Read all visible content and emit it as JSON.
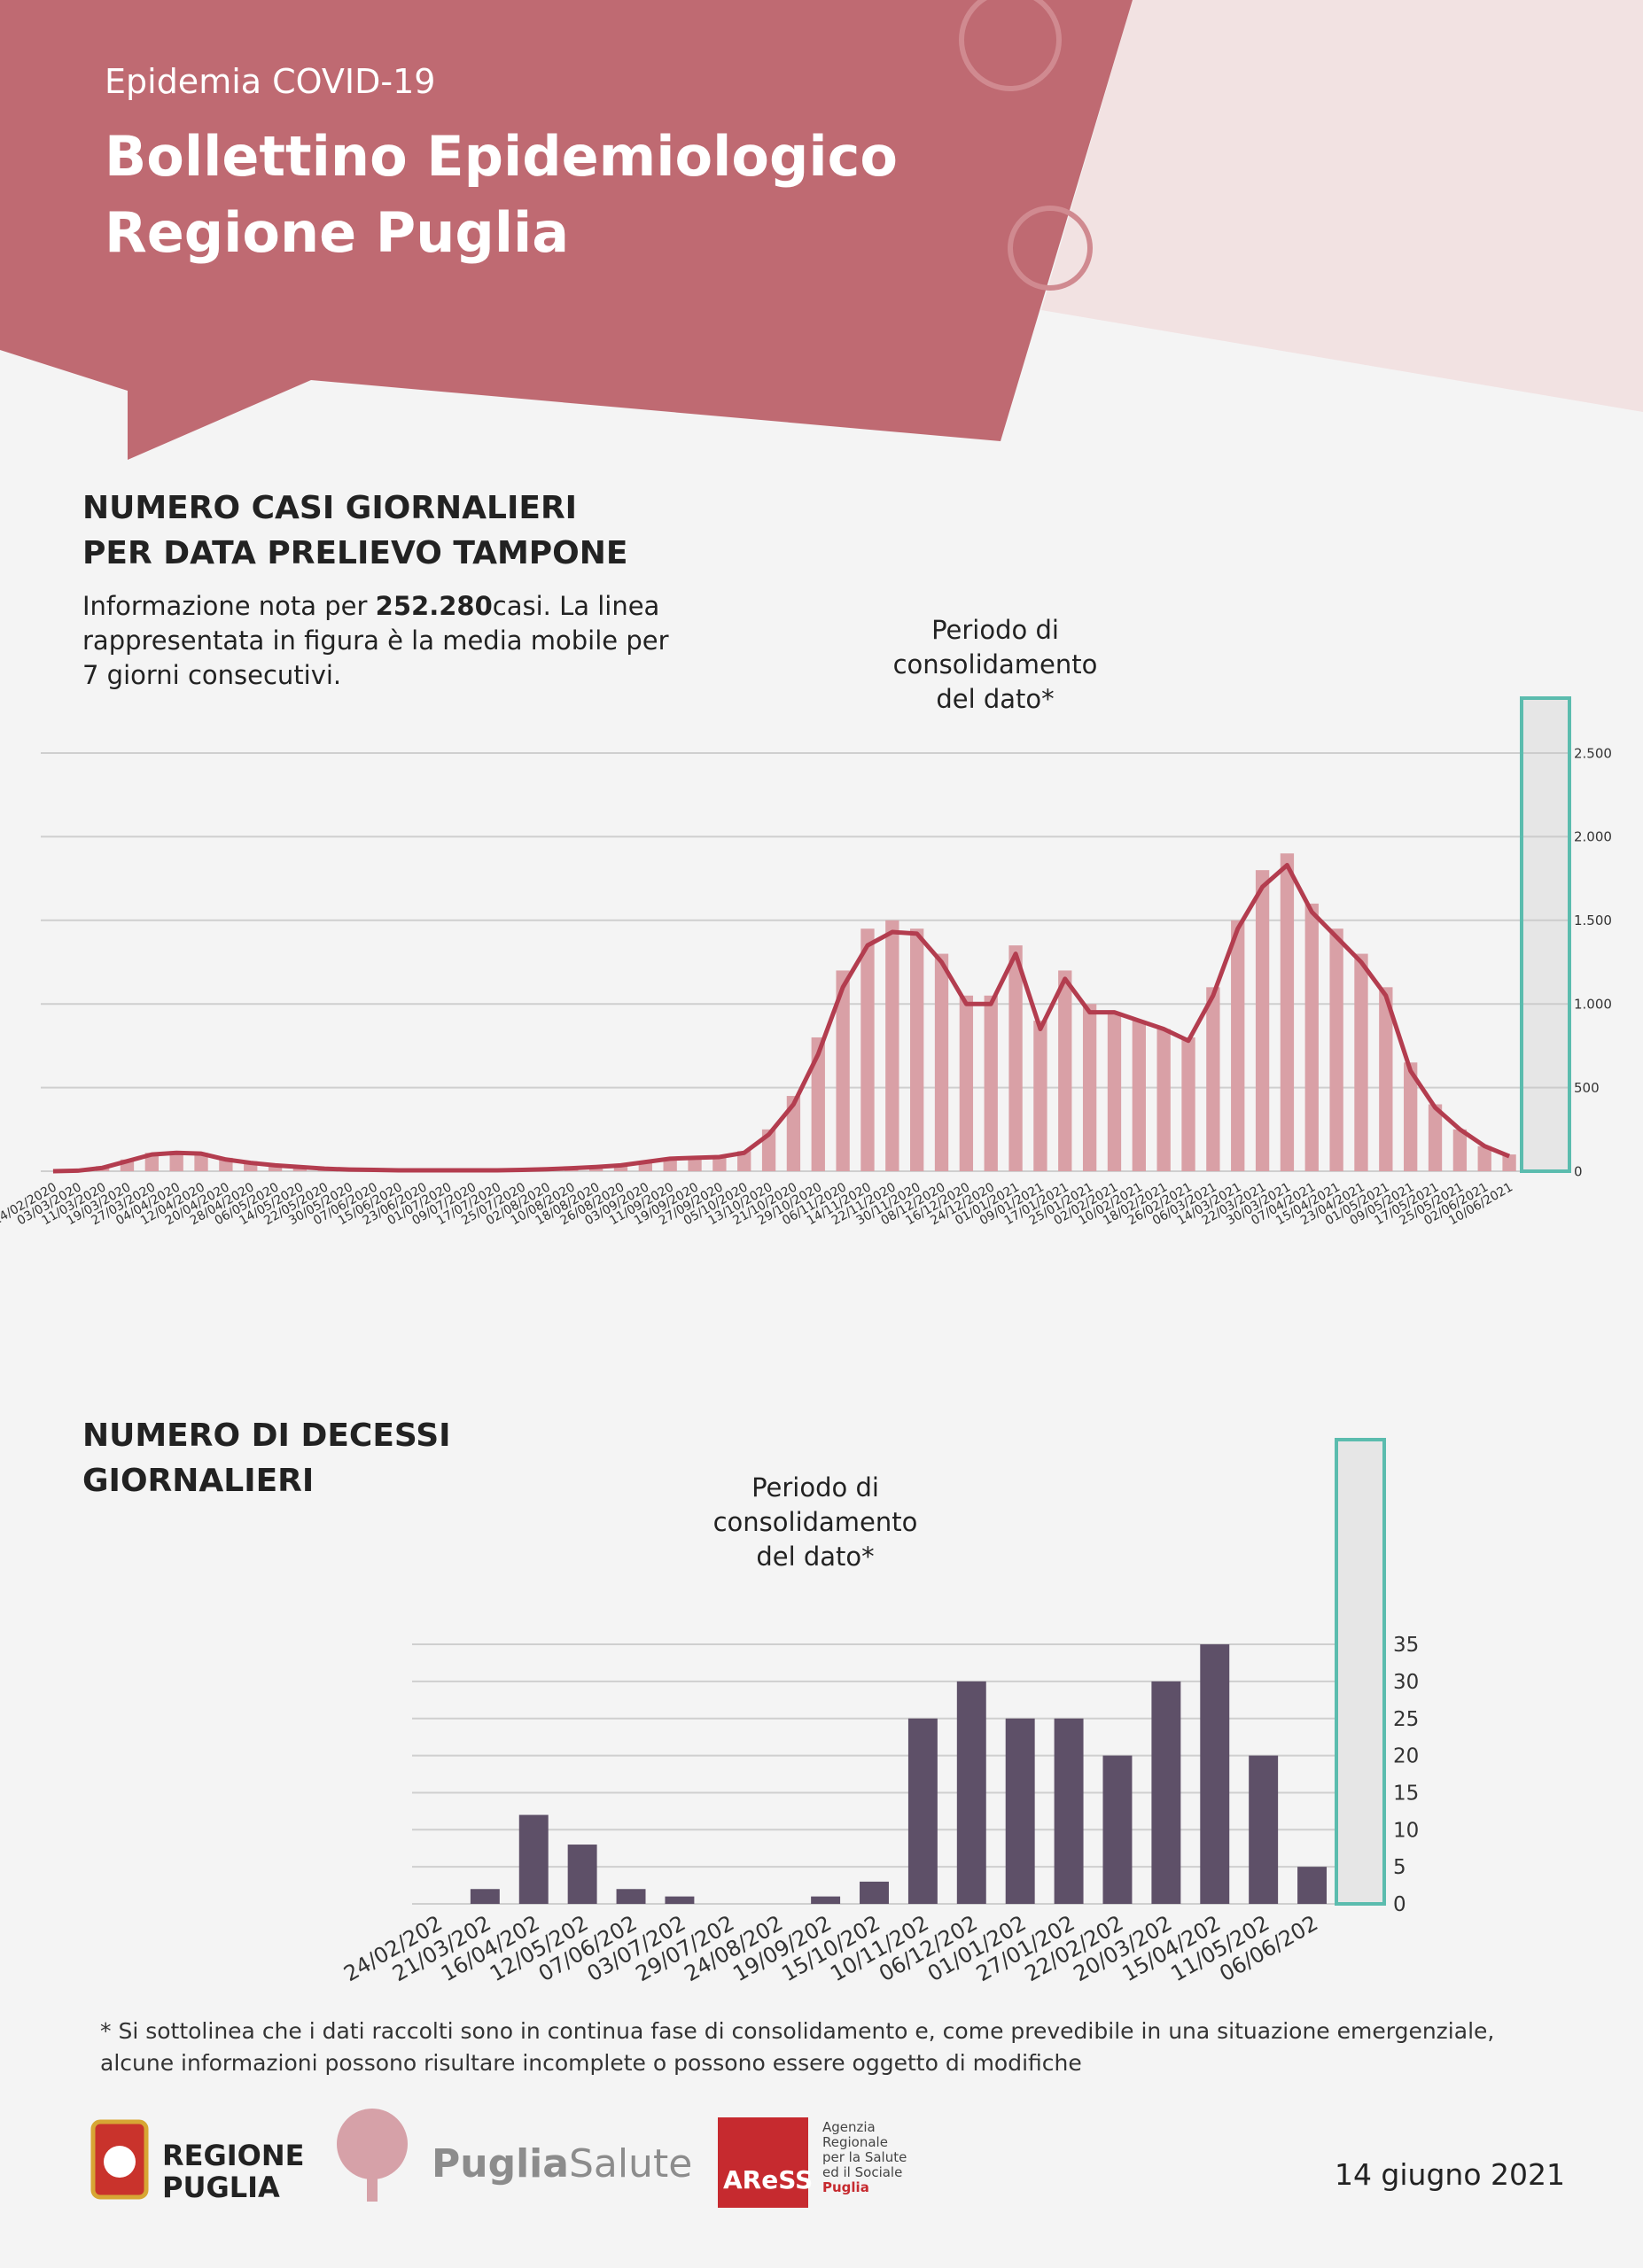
{
  "header": {
    "kicker": "Epidemia COVID-19",
    "title_line1": "Bollettino Epidemiologico",
    "title_line2": "Regione Puglia"
  },
  "chart_data": [
    {
      "type": "bar",
      "title_line1": "NUMERO CASI GIORNALIERI",
      "title_line2": "PER DATA PRELIEVO TAMPONE",
      "intro_before": "Informazione nota per ",
      "intro_bold": "252.280",
      "intro_after": "casi. La linea rappresentata in figura è la media mobile per 7 giorni consecutivi.",
      "annotation": "Periodo di consolidamento del dato*",
      "categories": [
        "24/02/2020",
        "03/03/2020",
        "11/03/2020",
        "19/03/2020",
        "27/03/2020",
        "04/04/2020",
        "12/04/2020",
        "20/04/2020",
        "28/04/2020",
        "06/05/2020",
        "14/05/2020",
        "22/05/2020",
        "30/05/2020",
        "07/06/2020",
        "15/06/2020",
        "23/06/2020",
        "01/07/2020",
        "09/07/2020",
        "17/07/2020",
        "25/07/2020",
        "02/08/2020",
        "10/08/2020",
        "18/08/2020",
        "26/08/2020",
        "03/09/2020",
        "11/09/2020",
        "19/09/2020",
        "27/09/2020",
        "05/10/2020",
        "13/10/2020",
        "21/10/2020",
        "29/10/2020",
        "06/11/2020",
        "14/11/2020",
        "22/11/2020",
        "30/11/2020",
        "08/12/2020",
        "16/12/2020",
        "24/12/2020",
        "01/01/2021",
        "09/01/2021",
        "17/01/2021",
        "25/01/2021",
        "02/02/2021",
        "10/02/2021",
        "18/02/2021",
        "26/02/2021",
        "06/03/2021",
        "14/03/2021",
        "22/03/2021",
        "30/03/2021",
        "07/04/2021",
        "15/04/2021",
        "23/04/2021",
        "01/05/2021",
        "09/05/2021",
        "17/05/2021",
        "25/05/2021",
        "02/06/2021",
        "10/06/2021"
      ],
      "values": [
        0,
        5,
        30,
        70,
        110,
        120,
        110,
        80,
        60,
        40,
        25,
        15,
        10,
        8,
        5,
        5,
        5,
        5,
        5,
        10,
        15,
        20,
        30,
        40,
        60,
        80,
        90,
        90,
        120,
        250,
        450,
        800,
        1200,
        1450,
        1500,
        1450,
        1300,
        1050,
        1050,
        1350,
        900,
        1200,
        1000,
        950,
        900,
        850,
        800,
        1100,
        1500,
        1800,
        1900,
        1600,
        1450,
        1300,
        1100,
        650,
        400,
        250,
        150,
        100
      ],
      "color": "#d9a0a6",
      "line_values": [
        0,
        3,
        20,
        60,
        100,
        110,
        105,
        70,
        50,
        35,
        25,
        15,
        10,
        8,
        5,
        5,
        5,
        5,
        5,
        8,
        12,
        18,
        25,
        35,
        55,
        75,
        80,
        85,
        110,
        220,
        400,
        700,
        1100,
        1350,
        1430,
        1420,
        1250,
        1000,
        1000,
        1300,
        850,
        1150,
        950,
        950,
        900,
        850,
        780,
        1050,
        1450,
        1700,
        1830,
        1550,
        1400,
        1250,
        1050,
        600,
        380,
        250,
        150,
        90
      ],
      "line_color": "#b33d4f",
      "ylim": [
        0,
        2500
      ],
      "yticks": [
        0,
        500,
        {
          "value": 1000,
          "label": "1.000"
        },
        {
          "value": 1500,
          "label": "1.500"
        },
        {
          "value": 2000,
          "label": "2.000"
        },
        {
          "value": 2500,
          "label": "2.500"
        }
      ],
      "grid": true
    },
    {
      "type": "bar",
      "title_line1": "NUMERO DI DECESSI",
      "title_line2": "GIORNALIERI",
      "annotation": "Periodo di consolidamento del dato*",
      "categories": [
        "24/02/202",
        "21/03/202",
        "16/04/202",
        "12/05/202",
        "07/06/202",
        "03/07/202",
        "29/07/202",
        "24/08/202",
        "19/09/202",
        "15/10/202",
        "10/11/202",
        "06/12/202",
        "01/01/202",
        "27/01/202",
        "22/02/202",
        "20/03/202",
        "15/04/202",
        "11/05/202",
        "06/06/202"
      ],
      "values": [
        0,
        2,
        12,
        8,
        2,
        1,
        0,
        0,
        1,
        3,
        25,
        30,
        25,
        25,
        20,
        30,
        35,
        20,
        5
      ],
      "color": "#5e5068",
      "ylim": [
        0,
        54
      ],
      "yticks": [
        0,
        5,
        10,
        15,
        20,
        25,
        30,
        35
      ],
      "grid": true
    }
  ],
  "footnote": "* Si sottolinea che i dati raccolti sono in continua fase di consolidamento e, come prevedibile in una situazione emergenziale, alcune informazioni possono risultare incomplete o possono essere oggetto di modifiche",
  "footer": {
    "regione_1": "REGIONE",
    "regione_2": "PUGLIA",
    "puglia": "Puglia",
    "salute": "Salute",
    "aress": "AReSS",
    "agenzia": [
      "Agenzia",
      "Regionale",
      "per la Salute",
      "ed il Sociale",
      "Puglia"
    ],
    "date": "14 giugno 2021"
  }
}
